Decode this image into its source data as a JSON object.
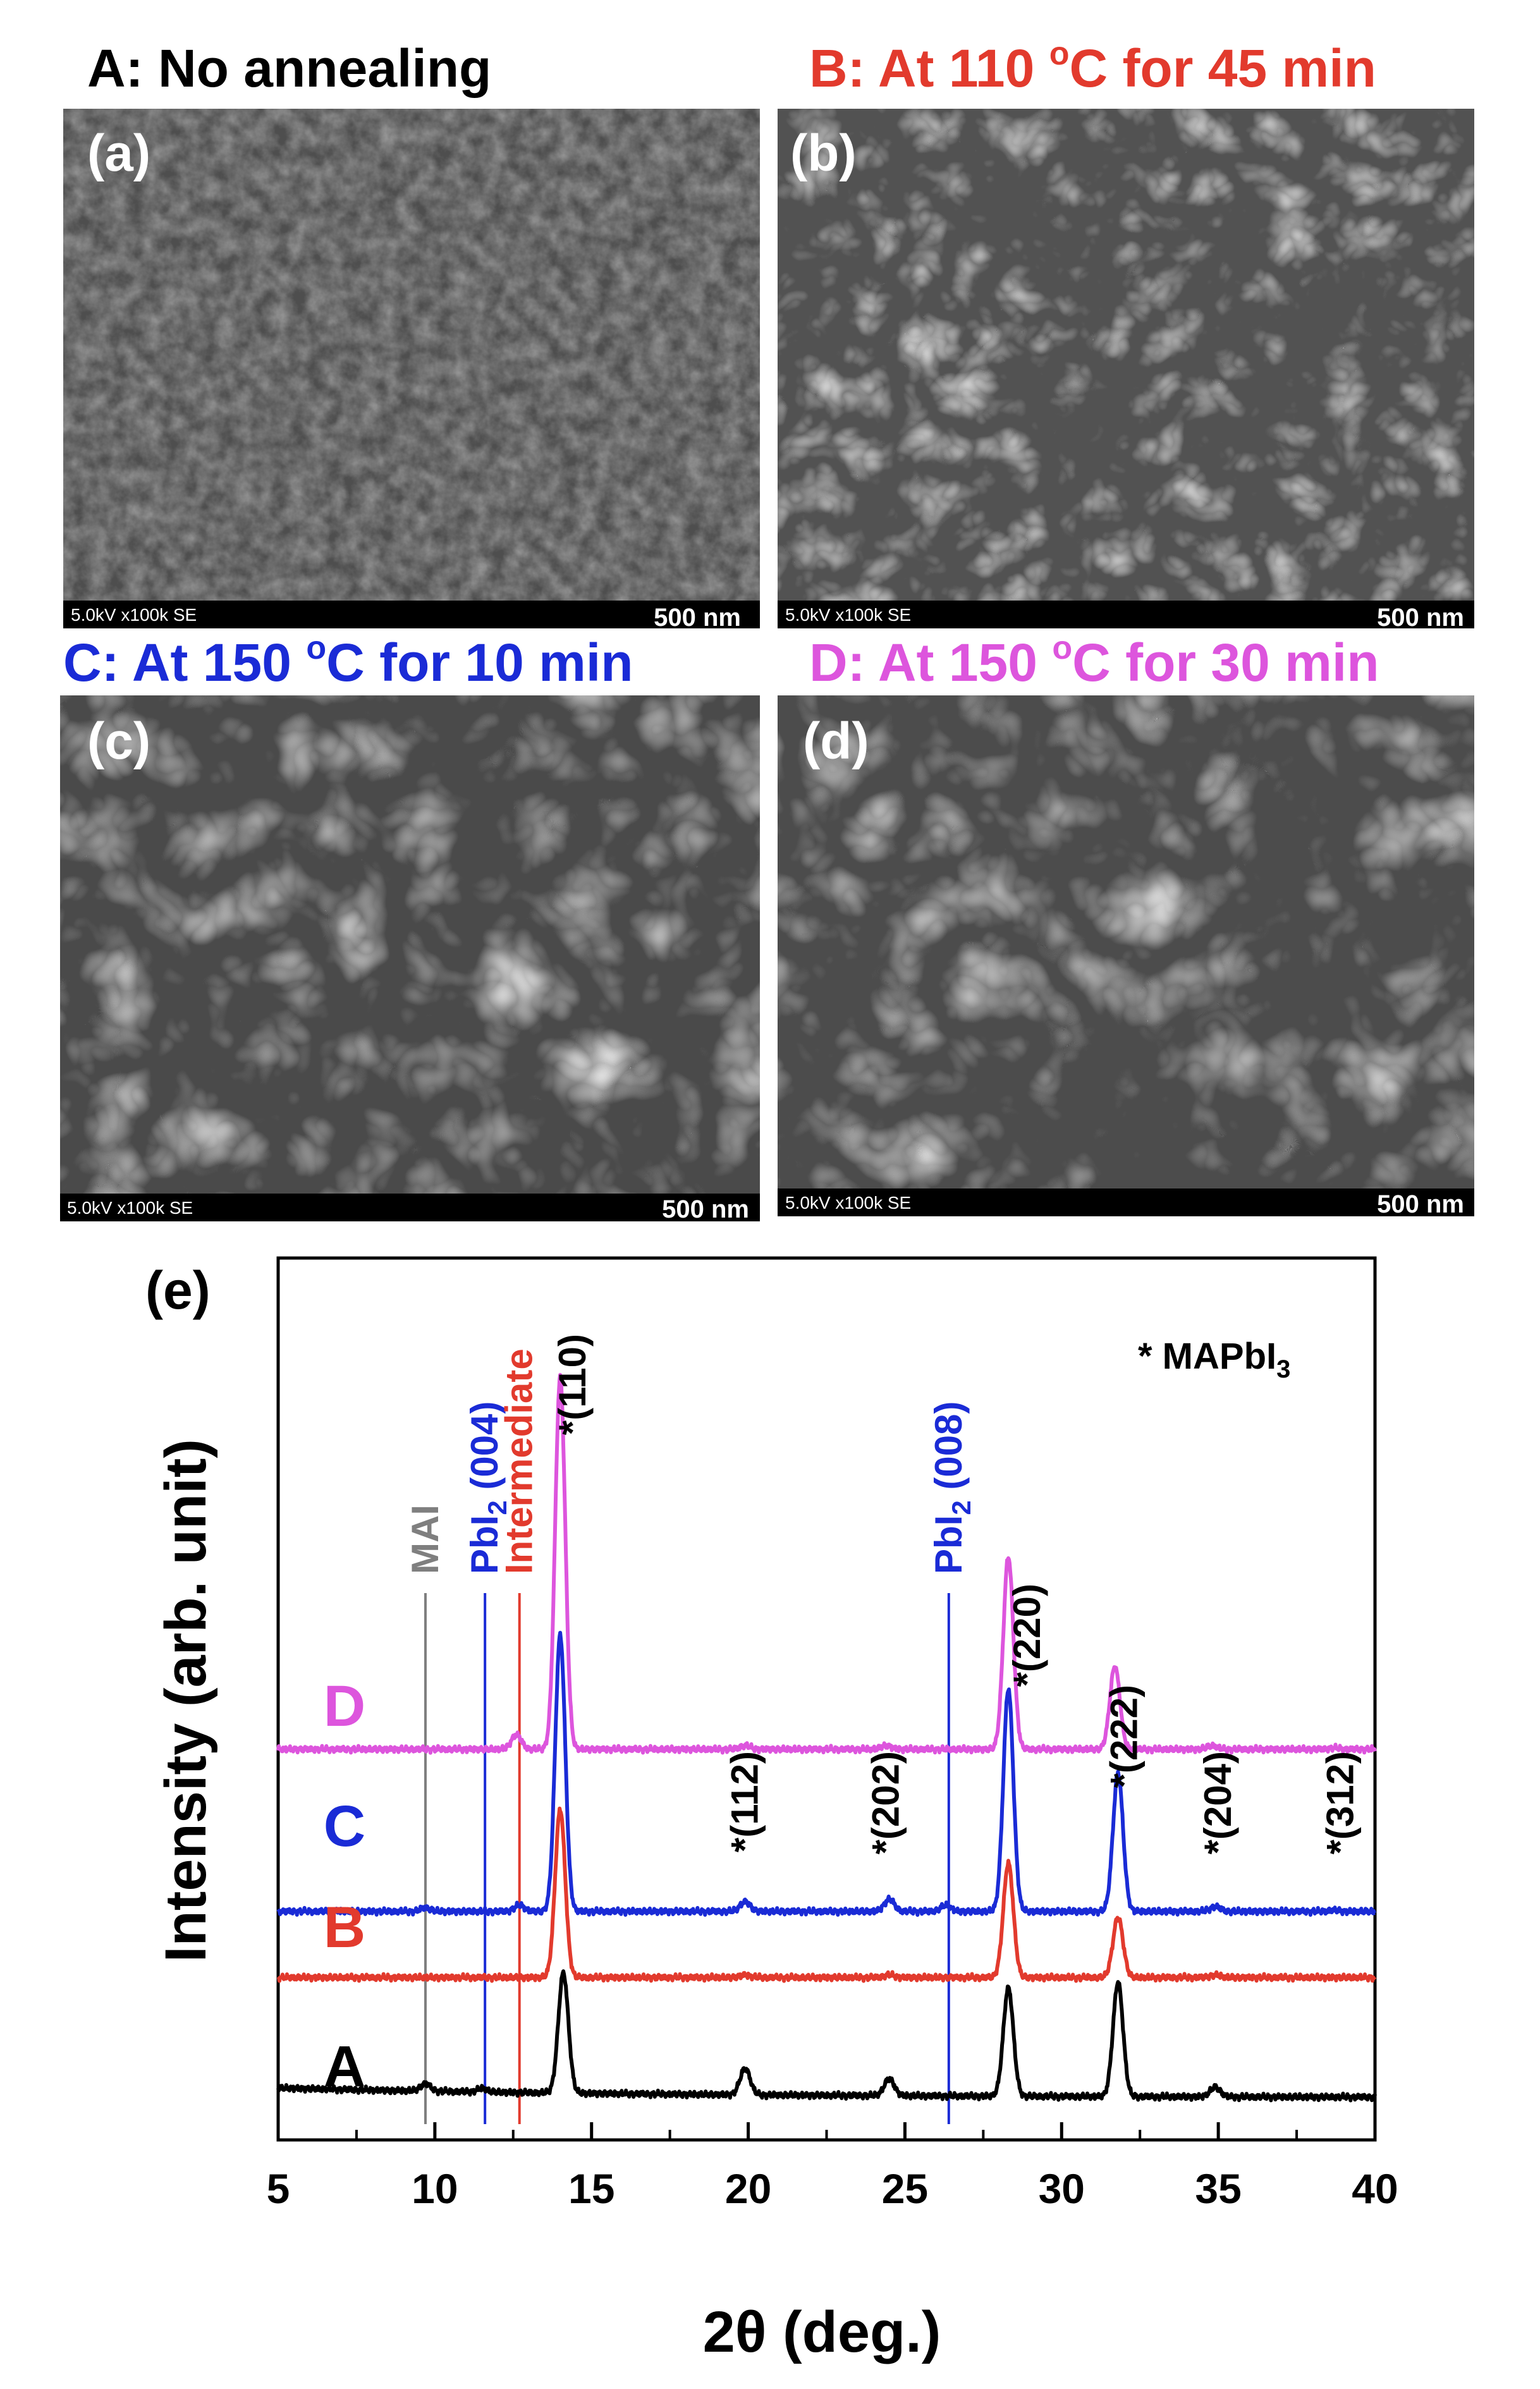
{
  "figure": {
    "panel_titles": [
      {
        "pre": "A: No annealing",
        "sup": "",
        "post": "",
        "color": "#000000"
      },
      {
        "pre": "B: At 110 ",
        "sup": "o",
        "post": "C for 45 min",
        "color": "#e23a2d"
      },
      {
        "pre": "C: At 150 ",
        "sup": "o",
        "post": "C for 10 min",
        "color": "#1a2bd6"
      },
      {
        "pre": "D: At 150 ",
        "sup": "o",
        "post": "C for 30 min",
        "color": "#dd55dd"
      }
    ],
    "sem_images": [
      {
        "panel_label": "(a)",
        "info": "5.0kV x100k SE",
        "scale": "500 nm"
      },
      {
        "panel_label": "(b)",
        "info": "5.0kV x100k SE",
        "scale": "500 nm"
      },
      {
        "panel_label": "(c)",
        "info": "5.0kV x100k SE",
        "scale": "500 nm"
      },
      {
        "panel_label": "(d)",
        "info": "5.0kV x100k SE",
        "scale": "500 nm"
      }
    ]
  },
  "chart_data": {
    "type": "line",
    "panel_label": "(e)",
    "xlabel": "2θ (deg.)",
    "ylabel": "Intensity (arb. unit)",
    "xlim": [
      5,
      40
    ],
    "xticks": [
      5,
      10,
      15,
      20,
      25,
      30,
      35,
      40
    ],
    "xtick_labels": [
      "5",
      "10",
      "15",
      "20",
      "25",
      "30",
      "35",
      "40"
    ],
    "legend_note": "* MAPbI",
    "legend_note_sub": "3",
    "series": [
      {
        "name": "A",
        "color": "#000000",
        "baseline": 0.0,
        "peaks": [
          [
            9.7,
            0.06
          ],
          [
            11.5,
            0.03
          ],
          [
            14.1,
            1.0
          ],
          [
            19.9,
            0.22
          ],
          [
            24.5,
            0.14
          ],
          [
            28.3,
            0.9
          ],
          [
            31.8,
            0.95
          ],
          [
            34.9,
            0.08
          ]
        ]
      },
      {
        "name": "B",
        "color": "#e23a2d",
        "baseline": 1.0,
        "peaks": [
          [
            14.0,
            1.4
          ],
          [
            19.9,
            0.02
          ],
          [
            24.5,
            0.02
          ],
          [
            28.3,
            0.95
          ],
          [
            31.8,
            0.5
          ],
          [
            34.9,
            0.02
          ]
        ]
      },
      {
        "name": "C",
        "color": "#1a2bd6",
        "baseline": 1.55,
        "peaks": [
          [
            9.7,
            0.03
          ],
          [
            12.7,
            0.05
          ],
          [
            14.0,
            2.3
          ],
          [
            19.9,
            0.08
          ],
          [
            24.5,
            0.1
          ],
          [
            26.3,
            0.05
          ],
          [
            28.3,
            1.85
          ],
          [
            31.8,
            1.15
          ],
          [
            34.9,
            0.04
          ],
          [
            38.7,
            0.01
          ]
        ]
      },
      {
        "name": "D",
        "color": "#dd55dd",
        "baseline": 2.9,
        "peaks": [
          [
            12.6,
            0.12
          ],
          [
            14.0,
            3.1
          ],
          [
            19.9,
            0.03
          ],
          [
            24.4,
            0.03
          ],
          [
            28.3,
            1.6
          ],
          [
            31.7,
            0.69
          ],
          [
            34.8,
            0.03
          ],
          [
            38.7,
            0.01
          ]
        ]
      }
    ],
    "reference_lines": [
      {
        "label": "MAI",
        "x": 9.7,
        "color": "#7f7f7f"
      },
      {
        "label": "PbI",
        "label_sub": "2",
        "label_post": " (004)",
        "x": 11.6,
        "color": "#1a2bd6"
      },
      {
        "label": "Intermediate",
        "x": 12.7,
        "color": "#e23a2d"
      },
      {
        "label": "PbI",
        "label_sub": "2",
        "label_post": " (008)",
        "x": 26.4,
        "color": "#1a2bd6"
      }
    ],
    "peak_annotations": [
      {
        "label": "*(110)",
        "x": 14.4
      },
      {
        "label": "*(112)",
        "x": 19.9
      },
      {
        "label": "*(202)",
        "x": 24.4
      },
      {
        "label": "*(220)",
        "x": 28.9
      },
      {
        "label": "*(222)",
        "x": 32.0
      },
      {
        "label": "*(204)",
        "x": 35.0
      },
      {
        "label": "*(312)",
        "x": 38.9
      }
    ]
  }
}
